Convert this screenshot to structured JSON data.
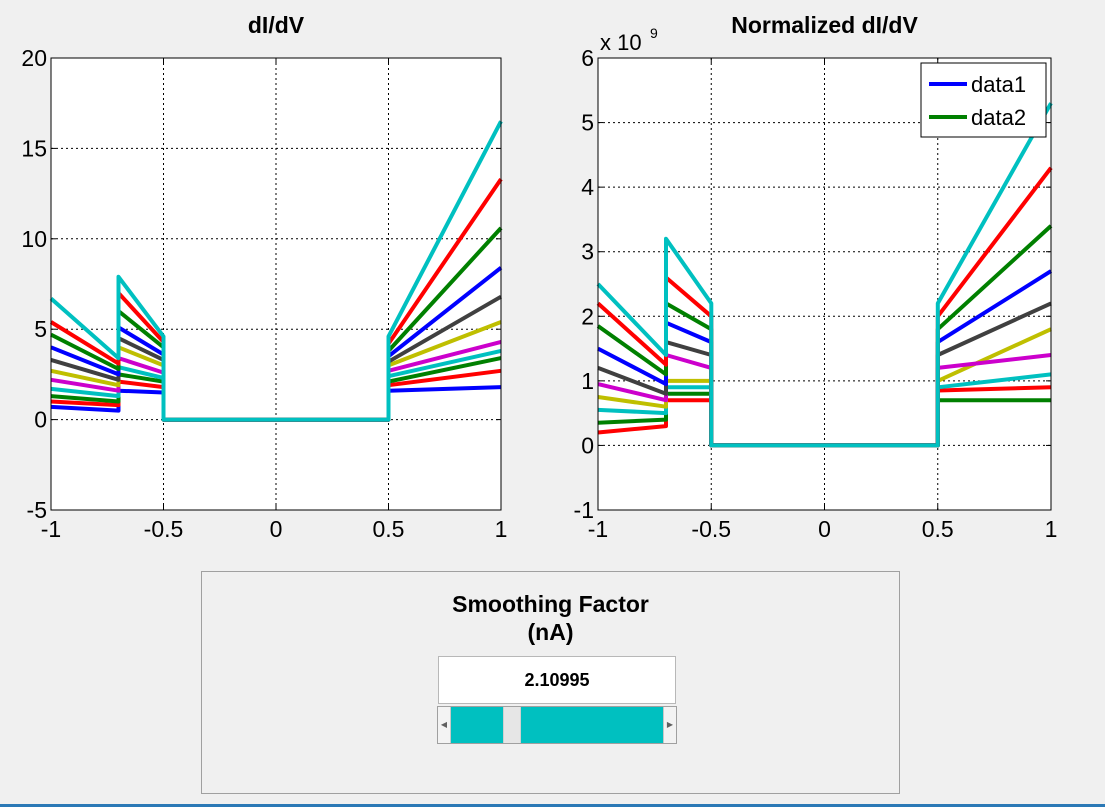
{
  "chart_data": [
    {
      "type": "line",
      "title": "dI/dV",
      "xlabel": "",
      "ylabel": "",
      "xlim": [
        -1,
        1
      ],
      "ylim": [
        -5,
        20
      ],
      "xticks": [
        "-1",
        "-0.5",
        "0",
        "0.5",
        "1"
      ],
      "yticks": [
        "-5",
        "0",
        "5",
        "10",
        "15",
        "20"
      ],
      "grid": true,
      "legend": null,
      "series": [
        {
          "color": "#0000ff",
          "x": [
            -1,
            -0.7,
            -0.7,
            -0.5,
            -0.5,
            0.5,
            0.5,
            1
          ],
          "y": [
            0.7,
            0.5,
            1.6,
            1.5,
            0,
            0,
            1.6,
            1.8
          ]
        },
        {
          "color": "#ff0000",
          "x": [
            -1,
            -0.7,
            -0.7,
            -0.5,
            -0.5,
            0.5,
            0.5,
            1
          ],
          "y": [
            1.0,
            0.8,
            2.1,
            1.8,
            0,
            0,
            1.9,
            2.7
          ]
        },
        {
          "color": "#008000",
          "x": [
            -1,
            -0.7,
            -0.7,
            -0.5,
            -0.5,
            0.5,
            0.5,
            1
          ],
          "y": [
            1.3,
            1.0,
            2.5,
            2.1,
            0,
            0,
            2.1,
            3.4
          ]
        },
        {
          "color": "#00c0c0",
          "x": [
            -1,
            -0.7,
            -0.7,
            -0.5,
            -0.5,
            0.5,
            0.5,
            1
          ],
          "y": [
            1.7,
            1.3,
            2.9,
            2.3,
            0,
            0,
            2.4,
            3.8
          ]
        },
        {
          "color": "#cc00cc",
          "x": [
            -1,
            -0.7,
            -0.7,
            -0.5,
            -0.5,
            0.5,
            0.5,
            1
          ],
          "y": [
            2.2,
            1.6,
            3.4,
            2.6,
            0,
            0,
            2.7,
            4.3
          ]
        },
        {
          "color": "#bfbf00",
          "x": [
            -1,
            -0.7,
            -0.7,
            -0.5,
            -0.5,
            0.5,
            0.5,
            1
          ],
          "y": [
            2.7,
            1.9,
            4.0,
            3.0,
            0,
            0,
            3.0,
            5.4
          ]
        },
        {
          "color": "#404040",
          "x": [
            -1,
            -0.7,
            -0.7,
            -0.5,
            -0.5,
            0.5,
            0.5,
            1
          ],
          "y": [
            3.3,
            2.2,
            4.5,
            3.3,
            0,
            0,
            3.2,
            6.8
          ]
        },
        {
          "color": "#0000ff",
          "x": [
            -1,
            -0.7,
            -0.7,
            -0.5,
            -0.5,
            0.5,
            0.5,
            1
          ],
          "y": [
            4.0,
            2.5,
            5.1,
            3.6,
            0,
            0,
            3.5,
            8.4
          ]
        },
        {
          "color": "#008000",
          "x": [
            -1,
            -0.7,
            -0.7,
            -0.5,
            -0.5,
            0.5,
            0.5,
            1
          ],
          "y": [
            4.7,
            2.8,
            6.0,
            4.0,
            0,
            0,
            3.8,
            10.6
          ]
        },
        {
          "color": "#ff0000",
          "x": [
            -1,
            -0.7,
            -0.7,
            -0.5,
            -0.5,
            0.5,
            0.5,
            1
          ],
          "y": [
            5.4,
            3.1,
            7.0,
            4.3,
            0,
            0,
            4.2,
            13.3
          ]
        },
        {
          "color": "#00c0c0",
          "x": [
            -1,
            -0.7,
            -0.7,
            -0.5,
            -0.5,
            0.5,
            0.5,
            1
          ],
          "y": [
            6.7,
            3.4,
            7.9,
            4.6,
            0,
            0,
            4.6,
            16.5
          ]
        }
      ]
    },
    {
      "type": "line",
      "title": "Normalized dI/dV",
      "xlabel": "",
      "ylabel": "",
      "xlim": [
        -1,
        1
      ],
      "ylim": [
        -1,
        6
      ],
      "xticks": [
        "-1",
        "-0.5",
        "0",
        "0.5",
        "1"
      ],
      "yticks": [
        "-1",
        "0",
        "1",
        "2",
        "3",
        "4",
        "5",
        "6"
      ],
      "y_multiplier": "x 10^9",
      "grid": true,
      "legend": {
        "position": "top-right",
        "entries": [
          {
            "label": "data1",
            "color": "#0000ff"
          },
          {
            "label": "data2",
            "color": "#008000"
          }
        ]
      },
      "series": [
        {
          "color": "#ff0000",
          "x": [
            -1,
            -0.7,
            -0.7,
            -0.5,
            -0.5,
            0.5,
            0.5,
            1
          ],
          "y": [
            0.2,
            0.3,
            0.7,
            0.7,
            0,
            0,
            0.85,
            0.9
          ]
        },
        {
          "color": "#008000",
          "x": [
            -1,
            -0.7,
            -0.7,
            -0.5,
            -0.5,
            0.5,
            0.5,
            1
          ],
          "y": [
            0.35,
            0.4,
            0.8,
            0.8,
            0,
            0,
            0.7,
            0.7
          ]
        },
        {
          "color": "#00c0c0",
          "x": [
            -1,
            -0.7,
            -0.7,
            -0.5,
            -0.5,
            0.5,
            0.5,
            1
          ],
          "y": [
            0.55,
            0.5,
            0.9,
            0.9,
            0,
            0,
            0.9,
            1.1
          ]
        },
        {
          "color": "#bfbf00",
          "x": [
            -1,
            -0.7,
            -0.7,
            -0.5,
            -0.5,
            0.5,
            0.5,
            1
          ],
          "y": [
            0.75,
            0.6,
            1.0,
            1.0,
            0,
            0,
            1.0,
            1.8
          ]
        },
        {
          "color": "#cc00cc",
          "x": [
            -1,
            -0.7,
            -0.7,
            -0.5,
            -0.5,
            0.5,
            0.5,
            1
          ],
          "y": [
            0.95,
            0.7,
            1.4,
            1.2,
            0,
            0,
            1.2,
            1.4
          ]
        },
        {
          "color": "#404040",
          "x": [
            -1,
            -0.7,
            -0.7,
            -0.5,
            -0.5,
            0.5,
            0.5,
            1
          ],
          "y": [
            1.2,
            0.8,
            1.6,
            1.4,
            0,
            0,
            1.4,
            2.2
          ]
        },
        {
          "color": "#0000ff",
          "x": [
            -1,
            -0.7,
            -0.7,
            -0.5,
            -0.5,
            0.5,
            0.5,
            1
          ],
          "y": [
            1.5,
            0.95,
            1.9,
            1.6,
            0,
            0,
            1.6,
            2.7
          ]
        },
        {
          "color": "#008000",
          "x": [
            -1,
            -0.7,
            -0.7,
            -0.5,
            -0.5,
            0.5,
            0.5,
            1
          ],
          "y": [
            1.85,
            1.1,
            2.2,
            1.8,
            0,
            0,
            1.8,
            3.4
          ]
        },
        {
          "color": "#ff0000",
          "x": [
            -1,
            -0.7,
            -0.7,
            -0.5,
            -0.5,
            0.5,
            0.5,
            1
          ],
          "y": [
            2.2,
            1.25,
            2.6,
            2.0,
            0,
            0,
            2.0,
            4.3
          ]
        },
        {
          "color": "#00c0c0",
          "x": [
            -1,
            -0.7,
            -0.7,
            -0.5,
            -0.5,
            0.5,
            0.5,
            1
          ],
          "y": [
            2.5,
            1.4,
            3.2,
            2.2,
            0,
            0,
            2.2,
            5.3
          ]
        }
      ]
    }
  ],
  "controls": {
    "title_line1": "Smoothing Factor",
    "title_line2": "(nA)",
    "value": "2.10995",
    "slider_fraction": 0.27,
    "accent_color": "#00c0c0"
  }
}
